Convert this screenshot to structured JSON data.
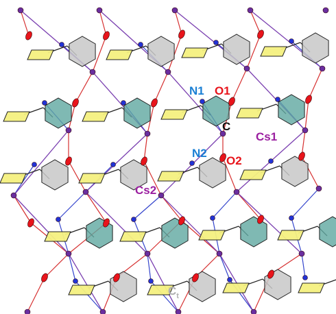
{
  "figure": {
    "labels": {
      "n1": "N1",
      "o1": "O1",
      "c": "C",
      "cs1": "Cs1",
      "n2": "N2",
      "o2": "O2",
      "cs2": "Cs2",
      "ct_main": "C",
      "ct_sub": "t"
    },
    "colors": {
      "cesium": "#6a2ea0",
      "oxygen": "#e8141b",
      "nitrogen": "#2233d6",
      "bond_cs_n": "#3344cc",
      "bond_cs_o": "#d63030",
      "bond_cs_cs": "#7a3fb0",
      "ring_yellow": "#f4f080",
      "ring_gray": "#c8c8c8",
      "ring_teal": "#5fa8a0",
      "label_n": "#1a7fd4",
      "label_o": "#e8141b",
      "label_cs": "#9b1fa0",
      "label_c": "#111111",
      "label_ct": "#b0b0b0"
    }
  }
}
